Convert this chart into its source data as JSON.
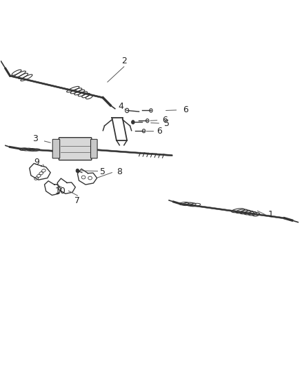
{
  "background_color": "#ffffff",
  "figure_width": 4.38,
  "figure_height": 5.33,
  "dpi": 100,
  "label_fontsize": 9,
  "label_color": "#222222",
  "line_color": "#555555",
  "line_width": 0.7,
  "dark": "#333333",
  "med": "#555555"
}
